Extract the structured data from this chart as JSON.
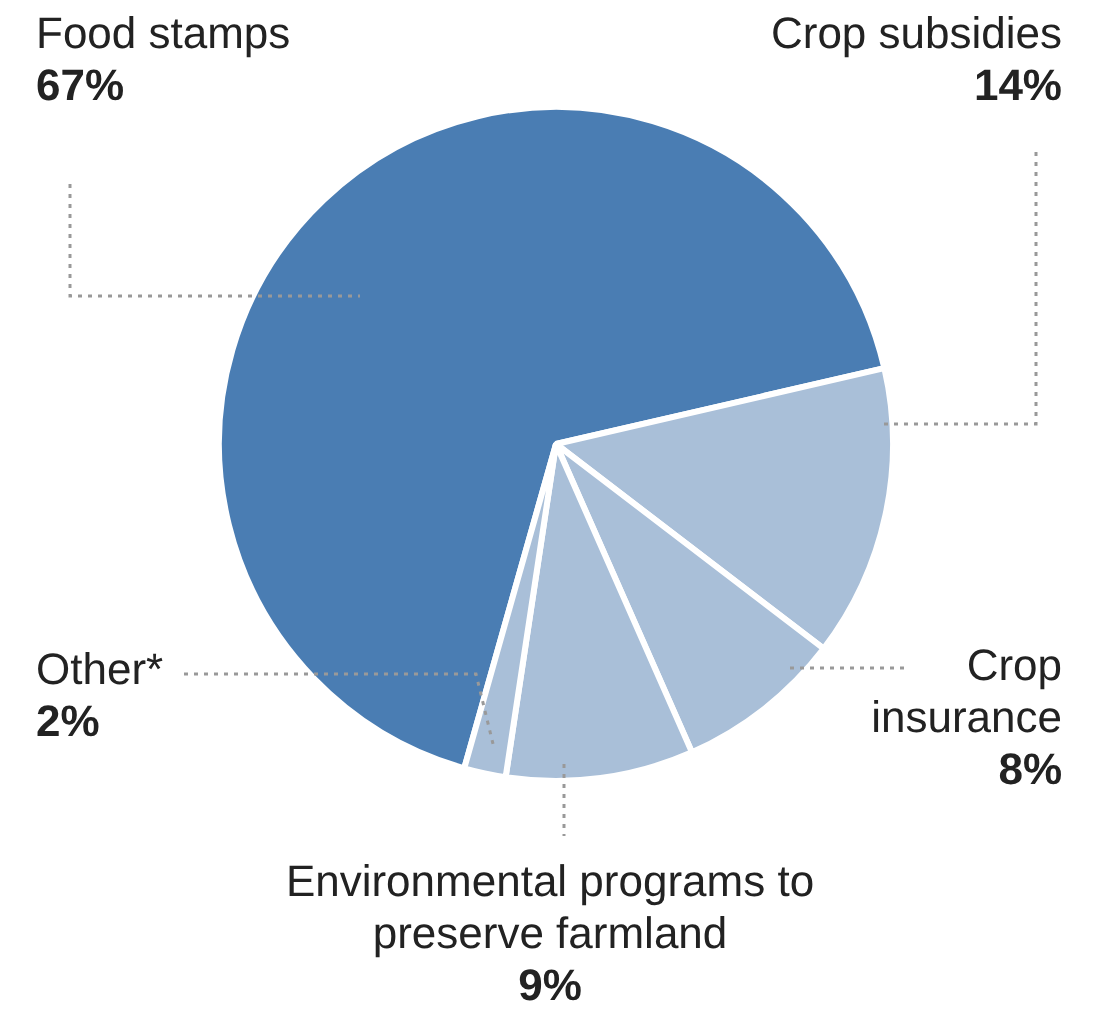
{
  "chart_data": {
    "type": "pie",
    "categories": [
      "Food stamps",
      "Crop subsidies",
      "Crop insurance",
      "Environmental programs to preserve farmland",
      "Other*"
    ],
    "values": [
      67,
      14,
      8,
      9,
      2
    ],
    "colors": [
      "#4a7db3",
      "#a9bfd8",
      "#a9bfd8",
      "#a9bfd8",
      "#a9bfd8"
    ],
    "value_labels": [
      "67%",
      "14%",
      "8%",
      "9%",
      "2%"
    ],
    "legend": false
  }
}
